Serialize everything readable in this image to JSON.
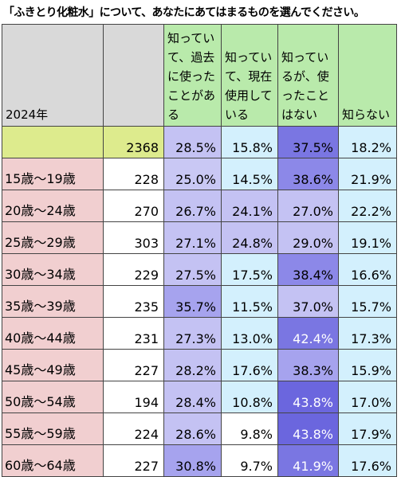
{
  "title": "「ふきとり化粧水」について、あなたにあてはまるものを選んでください。",
  "colors": {
    "header_gray": "#d9d9d9",
    "header_green": "#b9eaab",
    "total_row_yellow": "#ddeb8d",
    "age_label_pink": "#f1cfd0",
    "count_cell": "#ffffff",
    "scale_low": "#d3f0fd",
    "scale_mid": "#c4c2f3",
    "scale_high": "#7a76e2"
  },
  "chart_data": {
    "type": "table",
    "year_label": "2024年",
    "columns": [
      "知っていて、過去に使ったことがある",
      "知っていて、現在使用している",
      "知っているが、使ったことはない",
      "知らない"
    ],
    "rows": [
      {
        "label": "",
        "n": "2368",
        "values": [
          "28.5%",
          "15.8%",
          "37.5%",
          "18.2%"
        ]
      },
      {
        "label": "15歳～19歳",
        "n": "228",
        "values": [
          "25.0%",
          "14.5%",
          "38.6%",
          "21.9%"
        ]
      },
      {
        "label": "20歳～24歳",
        "n": "270",
        "values": [
          "26.7%",
          "24.1%",
          "27.0%",
          "22.2%"
        ]
      },
      {
        "label": "25歳～29歳",
        "n": "303",
        "values": [
          "27.1%",
          "24.8%",
          "29.0%",
          "19.1%"
        ]
      },
      {
        "label": "30歳～34歳",
        "n": "229",
        "values": [
          "27.5%",
          "17.5%",
          "38.4%",
          "16.6%"
        ]
      },
      {
        "label": "35歳～39歳",
        "n": "235",
        "values": [
          "35.7%",
          "11.5%",
          "37.0%",
          "15.7%"
        ]
      },
      {
        "label": "40歳～44歳",
        "n": "231",
        "values": [
          "27.3%",
          "13.0%",
          "42.4%",
          "17.3%"
        ]
      },
      {
        "label": "45歳～49歳",
        "n": "227",
        "values": [
          "28.2%",
          "17.6%",
          "38.3%",
          "15.9%"
        ]
      },
      {
        "label": "50歳～54歳",
        "n": "194",
        "values": [
          "28.4%",
          "10.8%",
          "43.8%",
          "17.0%"
        ]
      },
      {
        "label": "55歳～59歳",
        "n": "224",
        "values": [
          "28.6%",
          "9.8%",
          "43.8%",
          "17.9%"
        ]
      },
      {
        "label": "60歳～64歳",
        "n": "227",
        "values": [
          "30.8%",
          "9.7%",
          "41.9%",
          "17.6%"
        ]
      }
    ],
    "cell_colors": [
      [
        "#c4c2f3",
        "#d3f0fd",
        "#7a76e2",
        "#d3f0fd"
      ],
      [
        "#c9c8f4",
        "#d3f0fd",
        "#8c88e8",
        "#d3f0fd"
      ],
      [
        "#c4c2f3",
        "#c4c2f3",
        "#c4c2f3",
        "#d3f0fd"
      ],
      [
        "#c4c2f3",
        "#c4c2f3",
        "#c4c2f3",
        "#d3f0fd"
      ],
      [
        "#c4c2f3",
        "#d3f0fd",
        "#8c88e8",
        "#d3f0fd"
      ],
      [
        "#a6a3ee",
        "#d3f0fd",
        "#c4c2f3",
        "#d3f0fd"
      ],
      [
        "#c4c2f3",
        "#d3f0fd",
        "#7a76e2",
        "#d3f0fd"
      ],
      [
        "#c4c2f3",
        "#d3f0fd",
        "#a6a3ee",
        "#d3f0fd"
      ],
      [
        "#c4c2f3",
        "#d3f0fd",
        "#6b66de",
        "#d3f0fd"
      ],
      [
        "#c4c2f3",
        "#ffffff",
        "#6b66de",
        "#d3f0fd"
      ],
      [
        "#a6a3ee",
        "#ffffff",
        "#7a76e2",
        "#d3f0fd"
      ]
    ],
    "white_text_cells": [
      [
        6,
        2
      ],
      [
        8,
        2
      ],
      [
        9,
        2
      ],
      [
        10,
        2
      ]
    ]
  }
}
